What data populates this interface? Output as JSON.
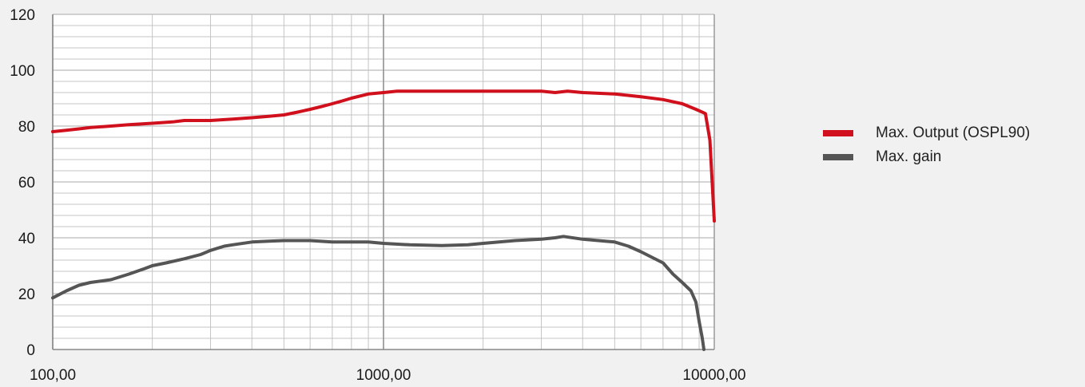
{
  "chart_data": {
    "type": "line",
    "title": "",
    "xlabel": "",
    "ylabel": "",
    "x_scale": "log",
    "xlim": [
      100,
      10000
    ],
    "ylim": [
      0,
      120
    ],
    "grid": true,
    "legend_position": "right",
    "x_tick_labels": [
      "100,00",
      "1000,00",
      "10000,00"
    ],
    "y_tick_labels": [
      "0",
      "20",
      "40",
      "60",
      "80",
      "100",
      "120"
    ],
    "series": [
      {
        "name": "Max. Output (OSPL90)",
        "color": "#d0101c",
        "points": [
          [
            100,
            78
          ],
          [
            110,
            78.5
          ],
          [
            120,
            79
          ],
          [
            130,
            79.5
          ],
          [
            150,
            80
          ],
          [
            170,
            80.5
          ],
          [
            200,
            81
          ],
          [
            230,
            81.5
          ],
          [
            250,
            82
          ],
          [
            300,
            82
          ],
          [
            350,
            82.5
          ],
          [
            400,
            83
          ],
          [
            450,
            83.5
          ],
          [
            500,
            84
          ],
          [
            550,
            85
          ],
          [
            600,
            86
          ],
          [
            650,
            87
          ],
          [
            700,
            88
          ],
          [
            750,
            89
          ],
          [
            800,
            90
          ],
          [
            900,
            91.5
          ],
          [
            1000,
            92
          ],
          [
            1100,
            92.5
          ],
          [
            1500,
            92.5
          ],
          [
            2000,
            92.5
          ],
          [
            2500,
            92.5
          ],
          [
            3000,
            92.5
          ],
          [
            3300,
            92
          ],
          [
            3600,
            92.5
          ],
          [
            4000,
            92
          ],
          [
            5000,
            91.5
          ],
          [
            6000,
            90.5
          ],
          [
            7000,
            89.5
          ],
          [
            8000,
            88
          ],
          [
            8800,
            86
          ],
          [
            9400,
            84.5
          ],
          [
            9700,
            75
          ],
          [
            10000,
            46
          ]
        ]
      },
      {
        "name": "Max. gain",
        "color": "#555555",
        "points": [
          [
            100,
            18.5
          ],
          [
            110,
            21
          ],
          [
            120,
            23
          ],
          [
            130,
            24
          ],
          [
            150,
            25
          ],
          [
            170,
            27
          ],
          [
            190,
            29
          ],
          [
            200,
            30
          ],
          [
            220,
            31
          ],
          [
            250,
            32.5
          ],
          [
            280,
            34
          ],
          [
            300,
            35.5
          ],
          [
            330,
            37
          ],
          [
            350,
            37.5
          ],
          [
            400,
            38.5
          ],
          [
            450,
            38.8
          ],
          [
            500,
            39
          ],
          [
            600,
            39
          ],
          [
            700,
            38.5
          ],
          [
            800,
            38.5
          ],
          [
            900,
            38.5
          ],
          [
            1000,
            38
          ],
          [
            1200,
            37.5
          ],
          [
            1500,
            37.2
          ],
          [
            1800,
            37.5
          ],
          [
            2000,
            38
          ],
          [
            2500,
            39
          ],
          [
            3000,
            39.5
          ],
          [
            3300,
            40
          ],
          [
            3500,
            40.5
          ],
          [
            4000,
            39.5
          ],
          [
            5000,
            38.5
          ],
          [
            5500,
            37
          ],
          [
            6000,
            35
          ],
          [
            7000,
            31
          ],
          [
            7500,
            27
          ],
          [
            8000,
            24
          ],
          [
            8500,
            21
          ],
          [
            8800,
            17
          ],
          [
            9000,
            10
          ],
          [
            9200,
            4
          ],
          [
            9300,
            0
          ]
        ]
      }
    ]
  }
}
